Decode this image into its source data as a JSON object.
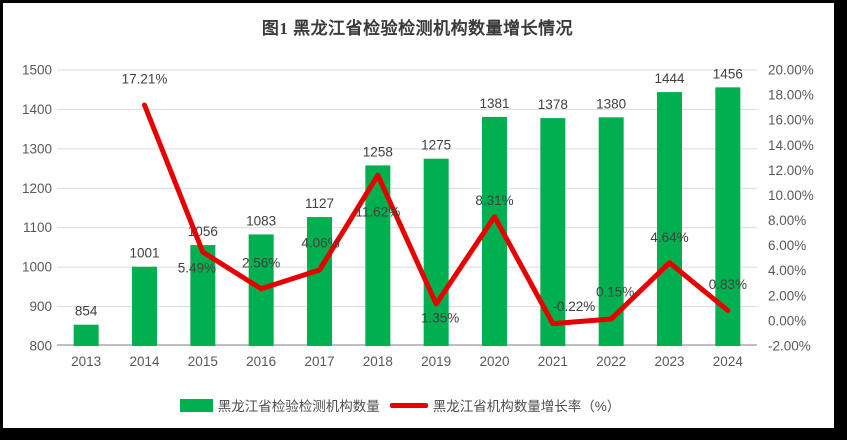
{
  "window": {
    "background": "#000000",
    "paper": "#ffffff"
  },
  "chart_data": {
    "type": "combo-bar-line",
    "title": "图1 黑龙江省检验检测机构数量增长情况",
    "categories": [
      "2013",
      "2014",
      "2015",
      "2016",
      "2017",
      "2018",
      "2019",
      "2020",
      "2021",
      "2022",
      "2023",
      "2024"
    ],
    "series": [
      {
        "name": "黑龙江省检验检测机构数量",
        "type": "bar",
        "axis": "left",
        "color": "#00AF50",
        "values": [
          854,
          1001,
          1056,
          1083,
          1127,
          1258,
          1275,
          1381,
          1378,
          1380,
          1444,
          1456
        ],
        "labels": [
          "854",
          "1001",
          "1056",
          "1083",
          "1127",
          "1258",
          "1275",
          "1381",
          "1378",
          "1380",
          "1444",
          "1456"
        ]
      },
      {
        "name": "黑龙江省机构数量增长率（%）",
        "type": "line",
        "axis": "right",
        "color": "#E80000",
        "values": [
          null,
          17.21,
          5.49,
          2.56,
          4.06,
          11.62,
          1.35,
          8.31,
          -0.22,
          0.15,
          4.64,
          0.83
        ],
        "labels": [
          null,
          "17.21%",
          "5.49%",
          "2.56%",
          "4.06%",
          "11.62%",
          "1.35%",
          "8.31%",
          "-0.22%",
          "0.15%",
          "4.64%",
          "0.83%"
        ],
        "label_dy": [
          null,
          -26,
          16,
          -26,
          -27,
          37,
          14,
          -16,
          -17,
          -27,
          -25,
          -26
        ],
        "label_dx": [
          null,
          0,
          -6,
          0,
          1,
          0,
          4,
          0,
          21,
          4,
          0,
          0
        ]
      }
    ],
    "left_axis": {
      "min": 800,
      "max": 1500,
      "step": 100,
      "tick_labels": [
        "800",
        "900",
        "1000",
        "1100",
        "1200",
        "1300",
        "1400",
        "1500"
      ]
    },
    "right_axis": {
      "min": -2,
      "max": 20,
      "step": 2,
      "tick_labels": [
        "-2.00%",
        "0.00%",
        "2.00%",
        "4.00%",
        "6.00%",
        "8.00%",
        "10.00%",
        "12.00%",
        "14.00%",
        "16.00%",
        "18.00%",
        "20.00%"
      ]
    },
    "grid": true,
    "legend_position": "bottom",
    "text_color": "#404040",
    "axis_text_color": "#595959",
    "gridline_color": "#D9D9D9",
    "axisline_color": "#BFBFBF"
  }
}
